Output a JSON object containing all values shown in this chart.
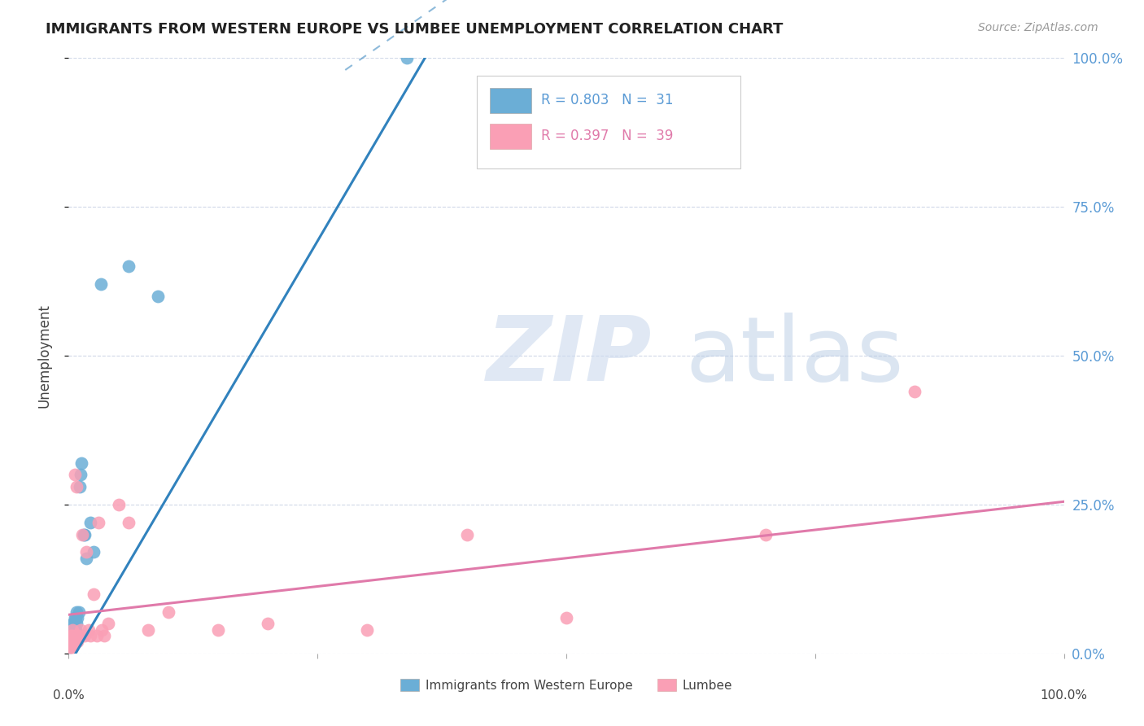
{
  "title": "IMMIGRANTS FROM WESTERN EUROPE VS LUMBEE UNEMPLOYMENT CORRELATION CHART",
  "source": "Source: ZipAtlas.com",
  "ylabel": "Unemployment",
  "ytick_labels": [
    "0.0%",
    "25.0%",
    "50.0%",
    "75.0%",
    "100.0%"
  ],
  "ytick_values": [
    0.0,
    0.25,
    0.5,
    0.75,
    1.0
  ],
  "legend_label_blue": "Immigrants from Western Europe",
  "legend_label_pink": "Lumbee",
  "blue_color": "#6baed6",
  "pink_color": "#fa9fb5",
  "blue_line_color": "#3182bd",
  "pink_line_color": "#e07aaa",
  "bg_color": "#ffffff",
  "grid_color": "#d0d8e8",
  "blue_points_x": [
    0.001,
    0.002,
    0.002,
    0.003,
    0.003,
    0.003,
    0.004,
    0.004,
    0.004,
    0.005,
    0.005,
    0.006,
    0.006,
    0.007,
    0.007,
    0.008,
    0.008,
    0.009,
    0.01,
    0.011,
    0.012,
    0.013,
    0.015,
    0.016,
    0.018,
    0.022,
    0.025,
    0.032,
    0.06,
    0.09,
    0.34
  ],
  "blue_points_y": [
    0.01,
    0.015,
    0.02,
    0.02,
    0.03,
    0.04,
    0.02,
    0.03,
    0.05,
    0.03,
    0.05,
    0.04,
    0.06,
    0.04,
    0.06,
    0.05,
    0.07,
    0.06,
    0.07,
    0.28,
    0.3,
    0.32,
    0.2,
    0.2,
    0.16,
    0.22,
    0.17,
    0.62,
    0.65,
    0.6,
    1.0
  ],
  "pink_points_x": [
    0.001,
    0.001,
    0.002,
    0.002,
    0.003,
    0.003,
    0.004,
    0.004,
    0.005,
    0.005,
    0.006,
    0.006,
    0.007,
    0.008,
    0.009,
    0.01,
    0.012,
    0.014,
    0.016,
    0.018,
    0.02,
    0.022,
    0.025,
    0.028,
    0.03,
    0.033,
    0.036,
    0.04,
    0.05,
    0.06,
    0.08,
    0.1,
    0.15,
    0.2,
    0.3,
    0.4,
    0.5,
    0.7,
    0.85
  ],
  "pink_points_y": [
    0.01,
    0.02,
    0.01,
    0.03,
    0.02,
    0.03,
    0.01,
    0.04,
    0.02,
    0.03,
    0.3,
    0.02,
    0.03,
    0.28,
    0.02,
    0.03,
    0.04,
    0.2,
    0.03,
    0.17,
    0.04,
    0.03,
    0.1,
    0.03,
    0.22,
    0.04,
    0.03,
    0.05,
    0.25,
    0.22,
    0.04,
    0.07,
    0.04,
    0.05,
    0.04,
    0.2,
    0.06,
    0.2,
    0.44
  ],
  "blue_slope": 2.85,
  "blue_intercept": -0.02,
  "pink_slope": 0.19,
  "pink_intercept": 0.065
}
